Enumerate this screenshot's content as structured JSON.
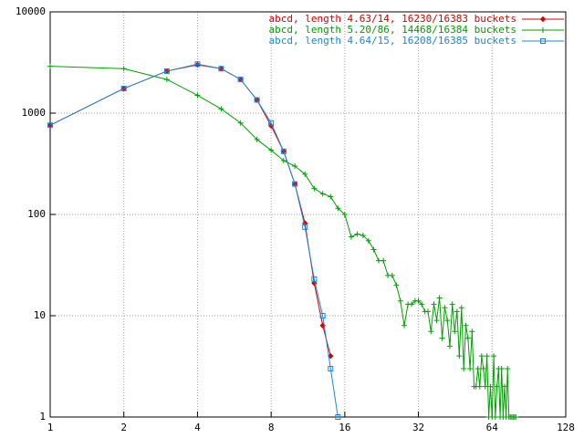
{
  "chart_data": {
    "type": "line",
    "xscale": "log2",
    "yscale": "log",
    "xlim": [
      1,
      128
    ],
    "ylim": [
      1,
      10000
    ],
    "xticks": [
      1,
      2,
      4,
      8,
      16,
      32,
      64,
      128
    ],
    "yticks": [
      1,
      10,
      100,
      1000,
      10000
    ],
    "grid": true,
    "legend": "top-right",
    "series": [
      {
        "name": "abcd, length 4.63/14, 16230/16383 buckets",
        "color": "#d40000",
        "marker": "diamond",
        "x": [
          1,
          2,
          3,
          4,
          5,
          6,
          7,
          8,
          9,
          10,
          11,
          12,
          13,
          14
        ],
        "values": [
          760,
          1750,
          2600,
          3000,
          2750,
          2150,
          1350,
          750,
          420,
          200,
          82,
          21,
          8,
          4
        ]
      },
      {
        "name": "abcd, length 5.20/86, 14468/16384 buckets",
        "color": "#00a000",
        "marker": "plus",
        "x": [
          1,
          2,
          3,
          4,
          5,
          6,
          7,
          8,
          9,
          10,
          11,
          12,
          13,
          14,
          15,
          16,
          17,
          18,
          19,
          20,
          21,
          22,
          23,
          24,
          25,
          26,
          27,
          28,
          29,
          30,
          31,
          32,
          33,
          34,
          35,
          36,
          37,
          38,
          39,
          40,
          41,
          42,
          43,
          44,
          45,
          46,
          47,
          48,
          49,
          50,
          51,
          52,
          53,
          54,
          55,
          56,
          57,
          58,
          59,
          60,
          61,
          62,
          63,
          64,
          65,
          66,
          67,
          68,
          69,
          70,
          71,
          72,
          73,
          74,
          75,
          76,
          77,
          78,
          79,
          80
        ],
        "values": [
          2900,
          2750,
          2150,
          1500,
          1100,
          800,
          550,
          430,
          340,
          300,
          250,
          180,
          160,
          150,
          115,
          100,
          60,
          64,
          62,
          55,
          45,
          35,
          35,
          25,
          25,
          20,
          14,
          8,
          13,
          13,
          14,
          14,
          13,
          11,
          11,
          7,
          13,
          9,
          15,
          6,
          12,
          9,
          5,
          13,
          7,
          11,
          4,
          12,
          3,
          8,
          6,
          3,
          7,
          2,
          2,
          3,
          2,
          4,
          3,
          2,
          4,
          1,
          2,
          1,
          4,
          1,
          2,
          3,
          1,
          3,
          1,
          2,
          1,
          3,
          1,
          1,
          1,
          1,
          1,
          1
        ]
      },
      {
        "name": "abcd, length 4.64/15, 16208/16385 buckets",
        "color": "#1a88d8",
        "marker": "square",
        "x": [
          1,
          2,
          3,
          4,
          5,
          6,
          7,
          8,
          9,
          10,
          11,
          12,
          13,
          14,
          15
        ],
        "values": [
          760,
          1750,
          2600,
          3050,
          2750,
          2150,
          1350,
          800,
          420,
          200,
          75,
          23,
          10,
          3,
          1
        ]
      }
    ]
  }
}
